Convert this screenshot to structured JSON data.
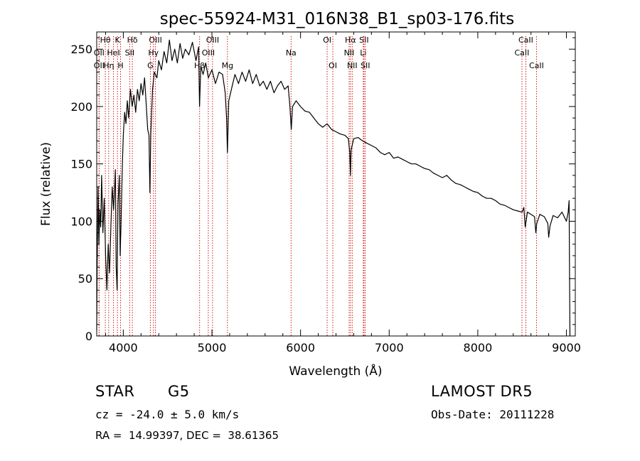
{
  "chart_data": {
    "type": "line",
    "title": "spec-55924-M31_016N38_B1_sp03-176.fits",
    "xlabel": "Wavelength (Å)",
    "ylabel": "Flux (relative)",
    "xlim": [
      3700,
      9100
    ],
    "ylim": [
      0,
      265
    ],
    "xticks": [
      4000,
      5000,
      6000,
      7000,
      8000,
      9000
    ],
    "yticks": [
      0,
      50,
      100,
      150,
      200,
      250
    ],
    "line_color": "#000000",
    "marker_color": "#cc0000",
    "grid": false,
    "series": [
      {
        "points": [
          [
            3700,
            5
          ],
          [
            3705,
            60
          ],
          [
            3715,
            130
          ],
          [
            3725,
            80
          ],
          [
            3735,
            110
          ],
          [
            3745,
            95
          ],
          [
            3755,
            140
          ],
          [
            3770,
            90
          ],
          [
            3785,
            120
          ],
          [
            3800,
            70
          ],
          [
            3815,
            40
          ],
          [
            3830,
            80
          ],
          [
            3845,
            55
          ],
          [
            3860,
            95
          ],
          [
            3875,
            130
          ],
          [
            3890,
            110
          ],
          [
            3900,
            125
          ],
          [
            3910,
            145
          ],
          [
            3920,
            60
          ],
          [
            3930,
            40
          ],
          [
            3940,
            115
          ],
          [
            3955,
            140
          ],
          [
            3965,
            70
          ],
          [
            3975,
            100
          ],
          [
            3990,
            150
          ],
          [
            4000,
            175
          ],
          [
            4015,
            195
          ],
          [
            4030,
            185
          ],
          [
            4045,
            205
          ],
          [
            4060,
            190
          ],
          [
            4080,
            215
          ],
          [
            4100,
            200
          ],
          [
            4120,
            210
          ],
          [
            4140,
            195
          ],
          [
            4160,
            215
          ],
          [
            4180,
            205
          ],
          [
            4200,
            220
          ],
          [
            4220,
            210
          ],
          [
            4240,
            225
          ],
          [
            4260,
            200
          ],
          [
            4275,
            180
          ],
          [
            4290,
            175
          ],
          [
            4300,
            125
          ],
          [
            4310,
            175
          ],
          [
            4330,
            215
          ],
          [
            4350,
            230
          ],
          [
            4380,
            225
          ],
          [
            4400,
            240
          ],
          [
            4430,
            232
          ],
          [
            4460,
            248
          ],
          [
            4490,
            238
          ],
          [
            4520,
            258
          ],
          [
            4550,
            240
          ],
          [
            4580,
            250
          ],
          [
            4610,
            238
          ],
          [
            4640,
            255
          ],
          [
            4670,
            242
          ],
          [
            4700,
            250
          ],
          [
            4740,
            245
          ],
          [
            4780,
            256
          ],
          [
            4820,
            240
          ],
          [
            4850,
            252
          ],
          [
            4860,
            200
          ],
          [
            4875,
            235
          ],
          [
            4900,
            228
          ],
          [
            4930,
            238
          ],
          [
            4960,
            225
          ],
          [
            5000,
            232
          ],
          [
            5040,
            220
          ],
          [
            5080,
            230
          ],
          [
            5120,
            228
          ],
          [
            5150,
            212
          ],
          [
            5165,
            190
          ],
          [
            5175,
            160
          ],
          [
            5190,
            205
          ],
          [
            5220,
            215
          ],
          [
            5260,
            228
          ],
          [
            5300,
            220
          ],
          [
            5340,
            230
          ],
          [
            5380,
            222
          ],
          [
            5420,
            232
          ],
          [
            5460,
            220
          ],
          [
            5500,
            228
          ],
          [
            5540,
            218
          ],
          [
            5580,
            222
          ],
          [
            5620,
            215
          ],
          [
            5660,
            222
          ],
          [
            5700,
            212
          ],
          [
            5740,
            218
          ],
          [
            5780,
            222
          ],
          [
            5820,
            215
          ],
          [
            5860,
            218
          ],
          [
            5880,
            200
          ],
          [
            5895,
            180
          ],
          [
            5910,
            200
          ],
          [
            5950,
            205
          ],
          [
            6000,
            200
          ],
          [
            6050,
            196
          ],
          [
            6100,
            195
          ],
          [
            6150,
            190
          ],
          [
            6200,
            185
          ],
          [
            6250,
            182
          ],
          [
            6300,
            185
          ],
          [
            6350,
            180
          ],
          [
            6400,
            178
          ],
          [
            6450,
            176
          ],
          [
            6500,
            175
          ],
          [
            6540,
            172
          ],
          [
            6555,
            160
          ],
          [
            6563,
            140
          ],
          [
            6570,
            162
          ],
          [
            6600,
            172
          ],
          [
            6650,
            173
          ],
          [
            6700,
            170
          ],
          [
            6750,
            168
          ],
          [
            6800,
            166
          ],
          [
            6850,
            164
          ],
          [
            6900,
            160
          ],
          [
            6950,
            158
          ],
          [
            7000,
            160
          ],
          [
            7050,
            155
          ],
          [
            7100,
            156
          ],
          [
            7150,
            154
          ],
          [
            7200,
            152
          ],
          [
            7250,
            150
          ],
          [
            7300,
            150
          ],
          [
            7350,
            148
          ],
          [
            7400,
            146
          ],
          [
            7450,
            145
          ],
          [
            7500,
            142
          ],
          [
            7550,
            140
          ],
          [
            7600,
            138
          ],
          [
            7650,
            140
          ],
          [
            7700,
            136
          ],
          [
            7750,
            133
          ],
          [
            7800,
            132
          ],
          [
            7850,
            130
          ],
          [
            7900,
            128
          ],
          [
            7950,
            126
          ],
          [
            8000,
            125
          ],
          [
            8050,
            122
          ],
          [
            8100,
            120
          ],
          [
            8150,
            120
          ],
          [
            8200,
            118
          ],
          [
            8250,
            115
          ],
          [
            8300,
            114
          ],
          [
            8350,
            112
          ],
          [
            8400,
            110
          ],
          [
            8450,
            109
          ],
          [
            8500,
            108
          ],
          [
            8520,
            112
          ],
          [
            8535,
            95
          ],
          [
            8545,
            100
          ],
          [
            8560,
            108
          ],
          [
            8600,
            106
          ],
          [
            8640,
            104
          ],
          [
            8655,
            90
          ],
          [
            8665,
            98
          ],
          [
            8700,
            106
          ],
          [
            8750,
            104
          ],
          [
            8790,
            98
          ],
          [
            8800,
            86
          ],
          [
            8815,
            96
          ],
          [
            8850,
            105
          ],
          [
            8900,
            103
          ],
          [
            8950,
            108
          ],
          [
            9000,
            100
          ],
          [
            9020,
            108
          ],
          [
            9030,
            118
          ],
          [
            9035,
            55
          ],
          [
            9040,
            0
          ]
        ]
      }
    ],
    "lines": [
      {
        "name": "Hθ",
        "x": 3797,
        "row": 0
      },
      {
        "name": "K",
        "x": 3934,
        "row": 0
      },
      {
        "name": "Hδ",
        "x": 4102,
        "row": 0
      },
      {
        "name": "OIII",
        "x": 4363,
        "row": 0
      },
      {
        "name": "OIII",
        "x": 5007,
        "row": 0
      },
      {
        "name": "OI",
        "x": 6300,
        "row": 0
      },
      {
        "name": "Hα",
        "x": 6563,
        "row": 0
      },
      {
        "name": "SII",
        "x": 6716,
        "row": 0
      },
      {
        "name": "CaII",
        "x": 8542,
        "row": 0
      },
      {
        "name": "OII",
        "x": 3727,
        "row": 1
      },
      {
        "name": "HeI",
        "x": 3889,
        "row": 1
      },
      {
        "name": "SII",
        "x": 4072,
        "row": 1
      },
      {
        "name": "Hγ",
        "x": 4340,
        "row": 1
      },
      {
        "name": "OIII",
        "x": 4959,
        "row": 1
      },
      {
        "name": "Na",
        "x": 5893,
        "row": 1
      },
      {
        "name": "NII",
        "x": 6548,
        "row": 1
      },
      {
        "name": "Li",
        "x": 6708,
        "row": 1
      },
      {
        "name": "CaII",
        "x": 8498,
        "row": 1
      },
      {
        "name": "OII",
        "x": 3727,
        "row": 2
      },
      {
        "name": "Hη",
        "x": 3835,
        "row": 2
      },
      {
        "name": "H",
        "x": 3969,
        "row": 2
      },
      {
        "name": "G",
        "x": 4305,
        "row": 2
      },
      {
        "name": "Hβ",
        "x": 4861,
        "row": 2
      },
      {
        "name": "Mg",
        "x": 5175,
        "row": 2
      },
      {
        "name": "OI",
        "x": 6364,
        "row": 2
      },
      {
        "name": "NII",
        "x": 6583,
        "row": 2
      },
      {
        "name": "SII",
        "x": 6731,
        "row": 2
      },
      {
        "name": "CaII",
        "x": 8662,
        "row": 2
      }
    ]
  },
  "info": {
    "object_class": "STAR",
    "subclass": "G5",
    "survey": "LAMOST DR5",
    "cz": "cz = -24.0 ± 5.0 km/s",
    "obs_date": "Obs-Date: 20111228",
    "coords": "RA =  14.99397, DEC =  38.61365"
  }
}
